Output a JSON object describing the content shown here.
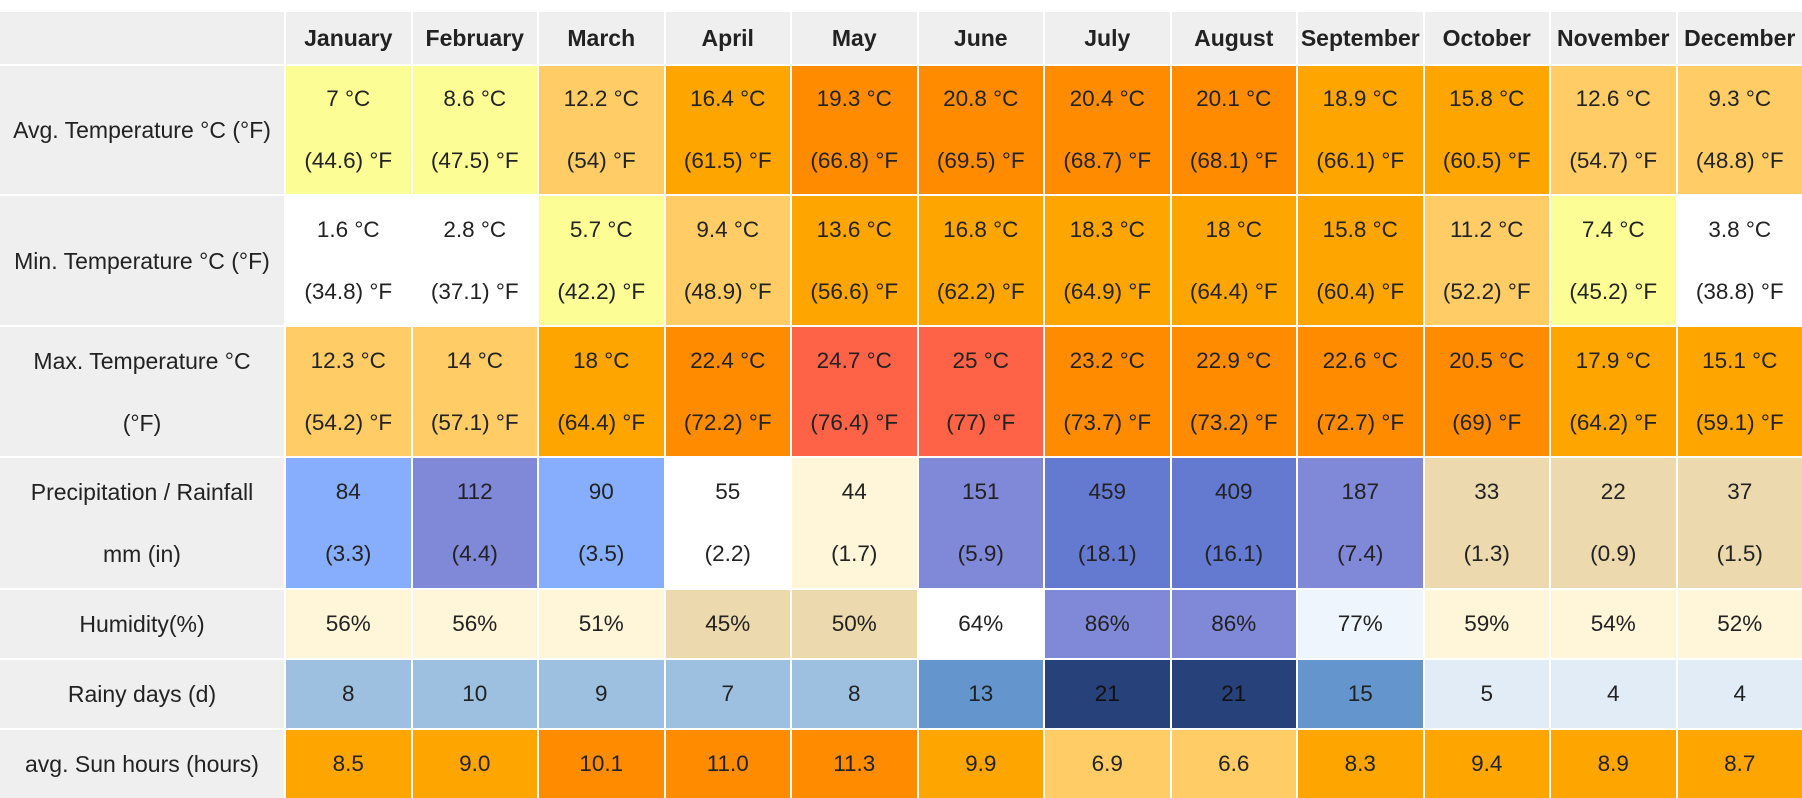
{
  "months": [
    "January",
    "February",
    "March",
    "April",
    "May",
    "June",
    "July",
    "August",
    "September",
    "October",
    "November",
    "December"
  ],
  "rows": [
    {
      "label": "Avg. Temperature °C (°F)",
      "cells": [
        {
          "l1": "7 °C",
          "l2": "(44.6) °F",
          "color": "#fdfd96"
        },
        {
          "l1": "8.6 °C",
          "l2": "(47.5) °F",
          "color": "#fdfd96"
        },
        {
          "l1": "12.2 °C",
          "l2": "(54) °F",
          "color": "#ffcc66"
        },
        {
          "l1": "16.4 °C",
          "l2": "(61.5) °F",
          "color": "#ffa500"
        },
        {
          "l1": "19.3 °C",
          "l2": "(66.8) °F",
          "color": "#ff8c00"
        },
        {
          "l1": "20.8 °C",
          "l2": "(69.5) °F",
          "color": "#ff8c00"
        },
        {
          "l1": "20.4 °C",
          "l2": "(68.7) °F",
          "color": "#ff8c00"
        },
        {
          "l1": "20.1 °C",
          "l2": "(68.1) °F",
          "color": "#ff8c00"
        },
        {
          "l1": "18.9 °C",
          "l2": "(66.1) °F",
          "color": "#ffa500"
        },
        {
          "l1": "15.8 °C",
          "l2": "(60.5) °F",
          "color": "#ffa500"
        },
        {
          "l1": "12.6 °C",
          "l2": "(54.7) °F",
          "color": "#ffcc66"
        },
        {
          "l1": "9.3 °C",
          "l2": "(48.8) °F",
          "color": "#ffcc66"
        }
      ]
    },
    {
      "label": "Min. Temperature °C (°F)",
      "cells": [
        {
          "l1": "1.6 °C",
          "l2": "(34.8) °F",
          "color": "#ffffff"
        },
        {
          "l1": "2.8 °C",
          "l2": "(37.1) °F",
          "color": "#ffffff"
        },
        {
          "l1": "5.7 °C",
          "l2": "(42.2) °F",
          "color": "#fdfd96"
        },
        {
          "l1": "9.4 °C",
          "l2": "(48.9) °F",
          "color": "#ffcc66"
        },
        {
          "l1": "13.6 °C",
          "l2": "(56.6) °F",
          "color": "#ffa500"
        },
        {
          "l1": "16.8 °C",
          "l2": "(62.2) °F",
          "color": "#ffa500"
        },
        {
          "l1": "18.3 °C",
          "l2": "(64.9) °F",
          "color": "#ffa500"
        },
        {
          "l1": "18 °C",
          "l2": "(64.4) °F",
          "color": "#ffa500"
        },
        {
          "l1": "15.8 °C",
          "l2": "(60.4) °F",
          "color": "#ffa500"
        },
        {
          "l1": "11.2 °C",
          "l2": "(52.2) °F",
          "color": "#ffcc66"
        },
        {
          "l1": "7.4 °C",
          "l2": "(45.2) °F",
          "color": "#fdfd96"
        },
        {
          "l1": "3.8 °C",
          "l2": "(38.8) °F",
          "color": "#ffffff"
        }
      ]
    },
    {
      "label": "Max. Temperature °C (°F)",
      "label_l1": "Max. Temperature °C",
      "label_l2": "(°F)",
      "cells": [
        {
          "l1": "12.3 °C",
          "l2": "(54.2) °F",
          "color": "#ffcc66"
        },
        {
          "l1": "14 °C",
          "l2": "(57.1) °F",
          "color": "#ffcc66"
        },
        {
          "l1": "18 °C",
          "l2": "(64.4) °F",
          "color": "#ffa500"
        },
        {
          "l1": "22.4 °C",
          "l2": "(72.2) °F",
          "color": "#ff8c00"
        },
        {
          "l1": "24.7 °C",
          "l2": "(76.4) °F",
          "color": "#ff6347"
        },
        {
          "l1": "25 °C",
          "l2": "(77) °F",
          "color": "#ff6347"
        },
        {
          "l1": "23.2 °C",
          "l2": "(73.7) °F",
          "color": "#ff8c00"
        },
        {
          "l1": "22.9 °C",
          "l2": "(73.2) °F",
          "color": "#ff8c00"
        },
        {
          "l1": "22.6 °C",
          "l2": "(72.7) °F",
          "color": "#ff8c00"
        },
        {
          "l1": "20.5 °C",
          "l2": "(69) °F",
          "color": "#ff8c00"
        },
        {
          "l1": "17.9 °C",
          "l2": "(64.2) °F",
          "color": "#ffa500"
        },
        {
          "l1": "15.1 °C",
          "l2": "(59.1) °F",
          "color": "#ffa500"
        }
      ]
    },
    {
      "label": "Precipitation / Rainfall mm (in)",
      "label_l1": "Precipitation / Rainfall",
      "label_l2": "mm (in)",
      "cells": [
        {
          "l1": "84",
          "l2": "(3.3)",
          "color": "#87aefd"
        },
        {
          "l1": "112",
          "l2": "(4.4)",
          "color": "#8088d8"
        },
        {
          "l1": "90",
          "l2": "(3.5)",
          "color": "#87aefd"
        },
        {
          "l1": "55",
          "l2": "(2.2)",
          "color": "#ffffff"
        },
        {
          "l1": "44",
          "l2": "(1.7)",
          "color": "#fff5d8"
        },
        {
          "l1": "151",
          "l2": "(5.9)",
          "color": "#8088d8"
        },
        {
          "l1": "459",
          "l2": "(18.1)",
          "color": "#6479d0"
        },
        {
          "l1": "409",
          "l2": "(16.1)",
          "color": "#6479d0"
        },
        {
          "l1": "187",
          "l2": "(7.4)",
          "color": "#8088d8"
        },
        {
          "l1": "33",
          "l2": "(1.3)",
          "color": "#ecd9ad"
        },
        {
          "l1": "22",
          "l2": "(0.9)",
          "color": "#ecd9ad"
        },
        {
          "l1": "37",
          "l2": "(1.5)",
          "color": "#ecd9ad"
        }
      ]
    },
    {
      "label": "Humidity(%)",
      "cells": [
        {
          "l1": "56%",
          "color": "#fff5d8"
        },
        {
          "l1": "56%",
          "color": "#fff5d8"
        },
        {
          "l1": "51%",
          "color": "#fff5d8"
        },
        {
          "l1": "45%",
          "color": "#ecd9ad"
        },
        {
          "l1": "50%",
          "color": "#ecd9ad"
        },
        {
          "l1": "64%",
          "color": "#ffffff"
        },
        {
          "l1": "86%",
          "color": "#8088d8"
        },
        {
          "l1": "86%",
          "color": "#8088d8"
        },
        {
          "l1": "77%",
          "color": "#eef5fd"
        },
        {
          "l1": "59%",
          "color": "#fff5d8"
        },
        {
          "l1": "54%",
          "color": "#fff5d8"
        },
        {
          "l1": "52%",
          "color": "#fff5d8"
        }
      ]
    },
    {
      "label": "Rainy days (d)",
      "cells": [
        {
          "l1": "8",
          "color": "#9dc0e0"
        },
        {
          "l1": "10",
          "color": "#9dc0e0"
        },
        {
          "l1": "9",
          "color": "#9dc0e0"
        },
        {
          "l1": "7",
          "color": "#9dc0e0"
        },
        {
          "l1": "8",
          "color": "#9dc0e0"
        },
        {
          "l1": "13",
          "color": "#6495cd"
        },
        {
          "l1": "21",
          "color": "#27417a"
        },
        {
          "l1": "21",
          "color": "#27417a"
        },
        {
          "l1": "15",
          "color": "#6495cd"
        },
        {
          "l1": "5",
          "color": "#e1ecf7"
        },
        {
          "l1": "4",
          "color": "#e1ecf7"
        },
        {
          "l1": "4",
          "color": "#e1ecf7"
        }
      ]
    },
    {
      "label": "avg. Sun hours (hours)",
      "cells": [
        {
          "l1": "8.5",
          "color": "#ffa500"
        },
        {
          "l1": "9.0",
          "color": "#ffa500"
        },
        {
          "l1": "10.1",
          "color": "#ff8c00"
        },
        {
          "l1": "11.0",
          "color": "#ff8c00"
        },
        {
          "l1": "11.3",
          "color": "#ff8c00"
        },
        {
          "l1": "9.9",
          "color": "#ffa500"
        },
        {
          "l1": "6.9",
          "color": "#ffcc66"
        },
        {
          "l1": "6.6",
          "color": "#ffcc66"
        },
        {
          "l1": "8.3",
          "color": "#ffa500"
        },
        {
          "l1": "9.4",
          "color": "#ffa500"
        },
        {
          "l1": "8.9",
          "color": "#ffa500"
        },
        {
          "l1": "8.7",
          "color": "#ffa500"
        }
      ]
    }
  ]
}
